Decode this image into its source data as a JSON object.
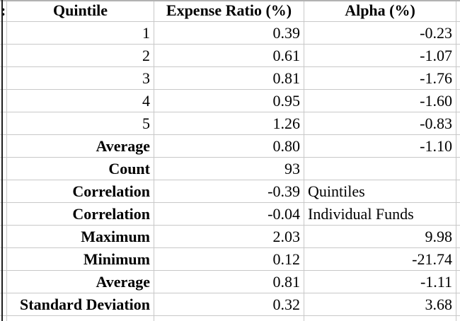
{
  "colors": {
    "background": "#ffffff",
    "gridline": "#c8c8c8",
    "top_border": "#b2b2b2",
    "left_rule": "#1f1f1f",
    "text": "#000000"
  },
  "table": {
    "clipped_left_text": ":",
    "columns": [
      {
        "label": "Quintile"
      },
      {
        "label": "Expense Ratio (%)"
      },
      {
        "label": "Alpha (%)"
      }
    ],
    "rows": [
      {
        "label": "1",
        "bold": false,
        "expense": "0.39",
        "alpha": "-0.23",
        "alpha_align": "right"
      },
      {
        "label": "2",
        "bold": false,
        "expense": "0.61",
        "alpha": "-1.07",
        "alpha_align": "right"
      },
      {
        "label": "3",
        "bold": false,
        "expense": "0.81",
        "alpha": "-1.76",
        "alpha_align": "right"
      },
      {
        "label": "4",
        "bold": false,
        "expense": "0.95",
        "alpha": "-1.60",
        "alpha_align": "right"
      },
      {
        "label": "5",
        "bold": false,
        "expense": "1.26",
        "alpha": "-0.83",
        "alpha_align": "right"
      },
      {
        "label": "Average",
        "bold": true,
        "expense": "0.80",
        "alpha": "-1.10",
        "alpha_align": "right"
      },
      {
        "label": "Count",
        "bold": true,
        "expense": "93",
        "alpha": "",
        "alpha_align": "right"
      },
      {
        "label": "Correlation",
        "bold": true,
        "expense": "-0.39",
        "alpha": "Quintiles",
        "alpha_align": "left"
      },
      {
        "label": "Correlation",
        "bold": true,
        "expense": "-0.04",
        "alpha": "Individual Funds",
        "alpha_align": "left"
      },
      {
        "label": "Maximum",
        "bold": true,
        "expense": "2.03",
        "alpha": "9.98",
        "alpha_align": "right"
      },
      {
        "label": "Minimum",
        "bold": true,
        "expense": "0.12",
        "alpha": "-21.74",
        "alpha_align": "right"
      },
      {
        "label": "Average",
        "bold": true,
        "expense": "0.81",
        "alpha": "-1.11",
        "alpha_align": "right"
      },
      {
        "label": "Standard Deviation",
        "bold": true,
        "expense": "0.32",
        "alpha": "3.68",
        "alpha_align": "right"
      }
    ]
  }
}
